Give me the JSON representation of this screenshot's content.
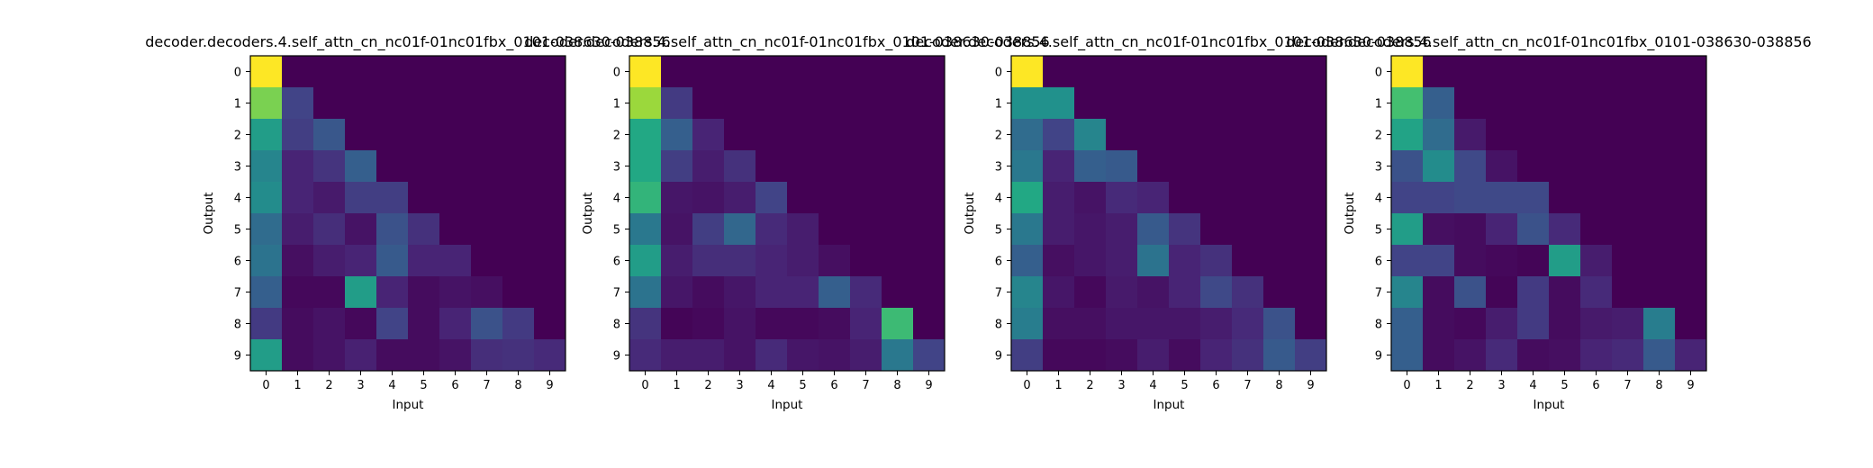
{
  "chart_data": [
    {
      "type": "heatmap",
      "title": "decoder.decoders.4.self_attn_cn_nc01f-01nc01fbx_0101-038630-038856",
      "xlabel": "Input",
      "ylabel": "Output",
      "x_ticks": [
        "0",
        "1",
        "2",
        "3",
        "4",
        "5",
        "6",
        "7",
        "8",
        "9"
      ],
      "y_ticks": [
        "0",
        "1",
        "2",
        "3",
        "4",
        "5",
        "6",
        "7",
        "8",
        "9"
      ],
      "colormap": "viridis",
      "vmin": 0,
      "vmax": 1,
      "values": [
        [
          1.0,
          0,
          0,
          0,
          0,
          0,
          0,
          0,
          0,
          0
        ],
        [
          0.8,
          0.2,
          0,
          0,
          0,
          0,
          0,
          0,
          0,
          0
        ],
        [
          0.55,
          0.18,
          0.27,
          0,
          0,
          0,
          0,
          0,
          0,
          0
        ],
        [
          0.45,
          0.1,
          0.15,
          0.3,
          0,
          0,
          0,
          0,
          0,
          0
        ],
        [
          0.48,
          0.1,
          0.07,
          0.18,
          0.18,
          0,
          0,
          0,
          0,
          0
        ],
        [
          0.35,
          0.08,
          0.13,
          0.05,
          0.25,
          0.14,
          0,
          0,
          0,
          0
        ],
        [
          0.38,
          0.04,
          0.08,
          0.1,
          0.28,
          0.1,
          0.1,
          0,
          0,
          0
        ],
        [
          0.3,
          0.02,
          0.02,
          0.55,
          0.1,
          0.03,
          0.05,
          0.04,
          0,
          0
        ],
        [
          0.17,
          0.03,
          0.05,
          0.02,
          0.2,
          0.03,
          0.1,
          0.25,
          0.17,
          0
        ],
        [
          0.55,
          0.03,
          0.05,
          0.09,
          0.03,
          0.03,
          0.05,
          0.13,
          0.14,
          0.12
        ]
      ]
    },
    {
      "type": "heatmap",
      "title": "decoder.decoders.4.self_attn_cn_nc01f-01nc01fbx_0101-038630-038856",
      "xlabel": "Input",
      "ylabel": "Output",
      "x_ticks": [
        "0",
        "1",
        "2",
        "3",
        "4",
        "5",
        "6",
        "7",
        "8",
        "9"
      ],
      "y_ticks": [
        "0",
        "1",
        "2",
        "3",
        "4",
        "5",
        "6",
        "7",
        "8",
        "9"
      ],
      "colormap": "viridis",
      "vmin": 0,
      "vmax": 1,
      "values": [
        [
          1.0,
          0,
          0,
          0,
          0,
          0,
          0,
          0,
          0,
          0
        ],
        [
          0.85,
          0.17,
          0,
          0,
          0,
          0,
          0,
          0,
          0,
          0
        ],
        [
          0.6,
          0.3,
          0.1,
          0,
          0,
          0,
          0,
          0,
          0,
          0
        ],
        [
          0.6,
          0.18,
          0.08,
          0.14,
          0,
          0,
          0,
          0,
          0,
          0
        ],
        [
          0.65,
          0.06,
          0.05,
          0.08,
          0.2,
          0,
          0,
          0,
          0,
          0
        ],
        [
          0.4,
          0.05,
          0.18,
          0.33,
          0.12,
          0.08,
          0,
          0,
          0,
          0
        ],
        [
          0.55,
          0.08,
          0.13,
          0.13,
          0.1,
          0.08,
          0.04,
          0,
          0,
          0
        ],
        [
          0.38,
          0.06,
          0.03,
          0.06,
          0.1,
          0.1,
          0.3,
          0.12,
          0,
          0
        ],
        [
          0.15,
          0.01,
          0.02,
          0.05,
          0.02,
          0.02,
          0.03,
          0.1,
          0.68,
          0
        ],
        [
          0.12,
          0.08,
          0.08,
          0.05,
          0.12,
          0.06,
          0.05,
          0.08,
          0.4,
          0.2
        ]
      ]
    },
    {
      "type": "heatmap",
      "title": "decoder.decoders.4.self_attn_cn_nc01f-01nc01fbx_0101-038630-038856",
      "xlabel": "Input",
      "ylabel": "Output",
      "x_ticks": [
        "0",
        "1",
        "2",
        "3",
        "4",
        "5",
        "6",
        "7",
        "8",
        "9"
      ],
      "y_ticks": [
        "0",
        "1",
        "2",
        "3",
        "4",
        "5",
        "6",
        "7",
        "8",
        "9"
      ],
      "colormap": "viridis",
      "vmin": 0,
      "vmax": 1,
      "values": [
        [
          1.0,
          0,
          0,
          0,
          0,
          0,
          0,
          0,
          0,
          0
        ],
        [
          0.5,
          0.5,
          0,
          0,
          0,
          0,
          0,
          0,
          0,
          0
        ],
        [
          0.35,
          0.2,
          0.45,
          0,
          0,
          0,
          0,
          0,
          0,
          0
        ],
        [
          0.4,
          0.1,
          0.3,
          0.28,
          0,
          0,
          0,
          0,
          0,
          0
        ],
        [
          0.6,
          0.08,
          0.05,
          0.12,
          0.1,
          0,
          0,
          0,
          0,
          0
        ],
        [
          0.4,
          0.08,
          0.06,
          0.08,
          0.28,
          0.15,
          0,
          0,
          0,
          0
        ],
        [
          0.3,
          0.04,
          0.06,
          0.08,
          0.38,
          0.1,
          0.14,
          0,
          0,
          0
        ],
        [
          0.45,
          0.06,
          0.02,
          0.07,
          0.05,
          0.1,
          0.22,
          0.14,
          0,
          0
        ],
        [
          0.42,
          0.04,
          0.04,
          0.06,
          0.06,
          0.06,
          0.08,
          0.12,
          0.25,
          0
        ],
        [
          0.18,
          0.02,
          0.02,
          0.03,
          0.08,
          0.03,
          0.1,
          0.14,
          0.28,
          0.18
        ]
      ]
    },
    {
      "type": "heatmap",
      "title": "decoder.decoders.4.self_attn_cn_nc01f-01nc01fbx_0101-038630-038856",
      "xlabel": "Input",
      "ylabel": "Output",
      "x_ticks": [
        "0",
        "1",
        "2",
        "3",
        "4",
        "5",
        "6",
        "7",
        "8",
        "9"
      ],
      "y_ticks": [
        "0",
        "1",
        "2",
        "3",
        "4",
        "5",
        "6",
        "7",
        "8",
        "9"
      ],
      "colormap": "viridis",
      "vmin": 0,
      "vmax": 1,
      "values": [
        [
          1.0,
          0,
          0,
          0,
          0,
          0,
          0,
          0,
          0,
          0
        ],
        [
          0.7,
          0.3,
          0,
          0,
          0,
          0,
          0,
          0,
          0,
          0
        ],
        [
          0.58,
          0.35,
          0.07,
          0,
          0,
          0,
          0,
          0,
          0,
          0
        ],
        [
          0.25,
          0.48,
          0.22,
          0.05,
          0,
          0,
          0,
          0,
          0,
          0
        ],
        [
          0.2,
          0.2,
          0.22,
          0.22,
          0.22,
          0,
          0,
          0,
          0,
          0
        ],
        [
          0.55,
          0.04,
          0.03,
          0.1,
          0.25,
          0.12,
          0,
          0,
          0,
          0
        ],
        [
          0.2,
          0.2,
          0.03,
          0.02,
          0.01,
          0.55,
          0.08,
          0,
          0,
          0
        ],
        [
          0.45,
          0.03,
          0.25,
          0.01,
          0.17,
          0.03,
          0.12,
          0,
          0,
          0
        ],
        [
          0.3,
          0.03,
          0.02,
          0.08,
          0.17,
          0.03,
          0.07,
          0.08,
          0.42,
          0
        ],
        [
          0.3,
          0.03,
          0.05,
          0.12,
          0.03,
          0.04,
          0.1,
          0.12,
          0.28,
          0.1
        ]
      ]
    }
  ]
}
